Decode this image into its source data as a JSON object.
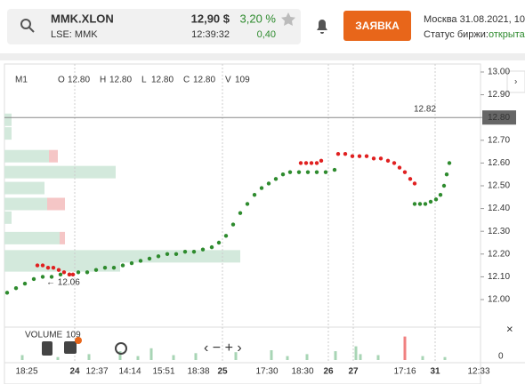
{
  "header": {
    "symbol": "MMK.XLON",
    "exchange": "LSE: MMK",
    "price": "12,90 $",
    "time": "12:39:32",
    "change_pct": "3,20 %",
    "change": "0,40",
    "button": "ЗАЯВКА",
    "datetime": "Москва 31.08.2021, 10:",
    "status_label": "Статус биржи:",
    "status": "открыта"
  },
  "chart_data": {
    "type": "scatter",
    "timeframe": "M1",
    "ohlc": [
      {
        "key": "O",
        "value": "12.80"
      },
      {
        "key": "H",
        "value": "12.80"
      },
      {
        "key": "L",
        "value": "12.80"
      },
      {
        "key": "C",
        "value": "12.80"
      },
      {
        "key": "V",
        "value": "109"
      }
    ],
    "ylim": [
      11.97,
      13.03
    ],
    "yticks": [
      {
        "value": 12.0,
        "label": "12.00"
      },
      {
        "value": 12.1,
        "label": "12.10"
      },
      {
        "value": 12.2,
        "label": "12.20"
      },
      {
        "value": 12.3,
        "label": "12.30"
      },
      {
        "value": 12.4,
        "label": "12.40"
      },
      {
        "value": 12.5,
        "label": "12.50"
      },
      {
        "value": 12.6,
        "label": "12.60"
      },
      {
        "value": 12.7,
        "label": "12.70"
      },
      {
        "value": 12.8,
        "label": "12.80"
      },
      {
        "value": 12.9,
        "label": "12.90"
      },
      {
        "value": 13.0,
        "label": "13.00"
      }
    ],
    "xlim": [
      0,
      535
    ],
    "xlabels": [
      "18:25",
      "24",
      "12:37",
      "14:14",
      "15:51",
      "18:38",
      "25",
      "17:30",
      "18:30",
      "26",
      "27",
      "17:16",
      "31",
      "12:33"
    ],
    "last_price": {
      "value": 12.8,
      "label": "12.80"
    },
    "annotations": [
      {
        "value": 12.82,
        "label": "12.82"
      },
      {
        "value": 12.06,
        "label": "← 12.06"
      }
    ],
    "series": [
      {
        "name": "up",
        "color": "#2e8b2e",
        "x": [
          3,
          13,
          23,
          33,
          43,
          53,
          63,
          73,
          83,
          93,
          103,
          113,
          123,
          133,
          143,
          153,
          163,
          173,
          183,
          193,
          203,
          213,
          223,
          233,
          241,
          249,
          257,
          265,
          273,
          281,
          289,
          297,
          305,
          313,
          321,
          331,
          341,
          351,
          361,
          371
        ],
        "values": [
          12.03,
          12.05,
          12.07,
          12.09,
          12.1,
          12.1,
          12.11,
          12.11,
          12.12,
          12.12,
          12.13,
          12.14,
          12.14,
          12.15,
          12.16,
          12.17,
          12.18,
          12.19,
          12.2,
          12.2,
          12.21,
          12.21,
          12.22,
          12.23,
          12.25,
          12.28,
          12.33,
          12.38,
          12.42,
          12.46,
          12.49,
          12.51,
          12.53,
          12.55,
          12.56,
          12.56,
          12.56,
          12.56,
          12.56,
          12.57
        ]
      },
      {
        "name": "up2",
        "color": "#2e8b2e",
        "x": [
          461,
          467,
          473,
          479,
          485,
          490,
          494,
          497,
          500
        ],
        "values": [
          12.42,
          12.42,
          12.42,
          12.43,
          12.44,
          12.46,
          12.5,
          12.55,
          12.6
        ]
      },
      {
        "name": "down",
        "color": "#e02020",
        "x": [
          37,
          43,
          49,
          55,
          61,
          67,
          73,
          77
        ],
        "values": [
          12.15,
          12.15,
          12.14,
          12.14,
          12.13,
          12.12,
          12.11,
          12.11
        ]
      },
      {
        "name": "down2",
        "color": "#e02020",
        "x": [
          333,
          339,
          345,
          351,
          356
        ],
        "values": [
          12.6,
          12.6,
          12.6,
          12.6,
          12.61
        ]
      },
      {
        "name": "down3",
        "color": "#e02020",
        "x": [
          375,
          383,
          391,
          399,
          407,
          415,
          423,
          431,
          438,
          444,
          450,
          456,
          461
        ],
        "values": [
          12.64,
          12.64,
          12.63,
          12.63,
          12.63,
          12.62,
          12.62,
          12.61,
          12.6,
          12.58,
          12.56,
          12.53,
          12.51
        ]
      }
    ],
    "profile": {
      "prices": [
        12.79,
        12.73,
        12.63,
        12.56,
        12.49,
        12.42,
        12.36,
        12.27,
        12.19,
        12.15
      ],
      "green": [
        8,
        8,
        50,
        125,
        45,
        48,
        8,
        62,
        265,
        130
      ],
      "red": [
        0,
        0,
        10,
        0,
        0,
        20,
        0,
        6,
        0,
        0
      ]
    },
    "volume": {
      "label": "VOLUME",
      "value": "109",
      "ylim": [
        0,
        30
      ],
      "yticks": [
        0
      ],
      "x": [
        20,
        60,
        95,
        130,
        150,
        165,
        190,
        215,
        260,
        300,
        318,
        340,
        372,
        395,
        400,
        420,
        450,
        470,
        495
      ],
      "values": [
        5,
        3,
        6,
        9,
        4,
        12,
        5,
        7,
        8,
        10,
        4,
        6,
        9,
        14,
        6,
        5,
        24,
        4,
        3
      ],
      "colors": [
        "g",
        "g",
        "g",
        "g",
        "g",
        "g",
        "g",
        "g",
        "g",
        "g",
        "g",
        "g",
        "g",
        "g",
        "g",
        "g",
        "r",
        "g",
        "g"
      ]
    }
  }
}
